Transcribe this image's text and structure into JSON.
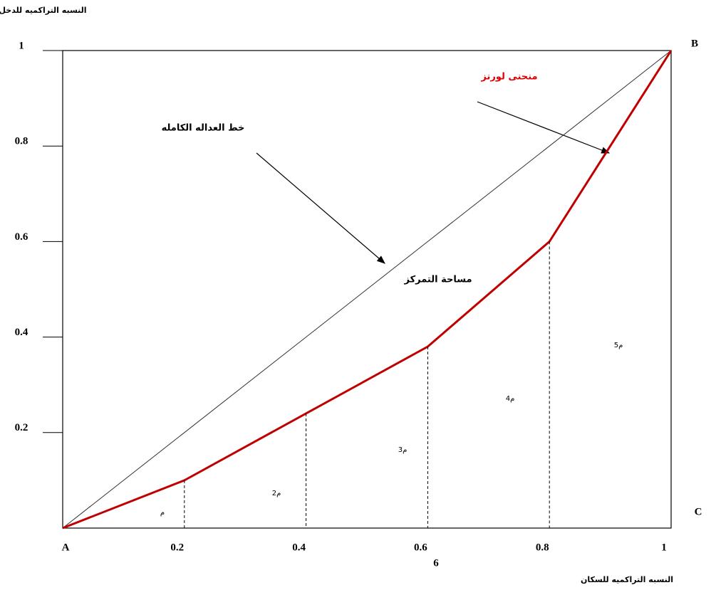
{
  "chart_data": {
    "type": "line",
    "y_axis_label": "النسبه التراكميه للدخل",
    "x_axis_label": "النسبه التراكميه للسكان",
    "x": [
      0,
      0.2,
      0.4,
      0.6,
      0.8,
      1
    ],
    "series": [
      {
        "name": "خط العداله الكامله",
        "color": "#333333",
        "values": [
          0,
          0.2,
          0.4,
          0.6,
          0.8,
          1
        ]
      },
      {
        "name": "منحنى لورنز",
        "color": "#c00000",
        "values": [
          0,
          0.1,
          0.24,
          0.38,
          0.6,
          1
        ]
      }
    ],
    "xlim": [
      0,
      1
    ],
    "ylim": [
      0,
      1
    ],
    "xticks": [
      0.2,
      0.4,
      0.6,
      0.8,
      1
    ],
    "yticks": [
      0.2,
      0.4,
      0.6,
      0.8,
      1
    ],
    "area_label": "مساحة التمركز",
    "region_labels": [
      "م",
      "م2",
      "م3",
      "م4",
      "م5"
    ],
    "corner_labels": [
      "A",
      "B",
      "C"
    ],
    "page_number": "6"
  }
}
